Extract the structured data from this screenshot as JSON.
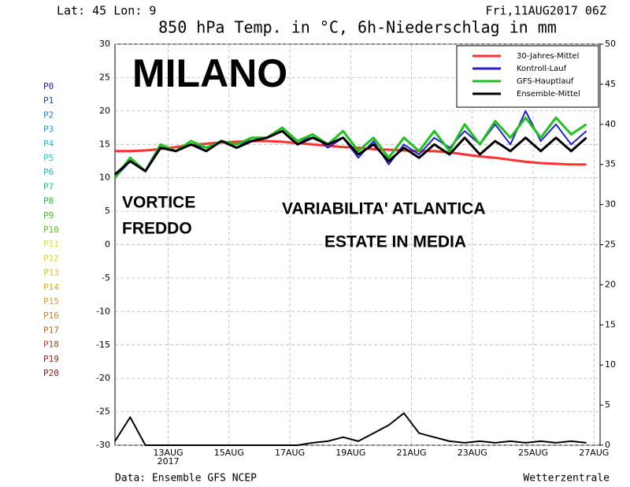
{
  "chart_data": {
    "type": "line",
    "header_left": "Lat: 45 Lon: 9",
    "header_right": "Fri,11AUG2017 06Z",
    "title": "850 hPa Temp. in °C, 6h-Niederschlag in mm",
    "footer_left": "Data: Ensemble GFS NCEP",
    "footer_right": "Wetterzentrale",
    "year_label": "2017",
    "annotations": [
      "MILANO",
      "VORTICE",
      "FREDDO",
      "VARIABILITA' ATLANTICA",
      "ESTATE IN MEDIA"
    ],
    "members": [
      {
        "name": "P0",
        "color": "#2020c0"
      },
      {
        "name": "P1",
        "color": "#2040d0"
      },
      {
        "name": "P2",
        "color": "#2080e0"
      },
      {
        "name": "P3",
        "color": "#20a0d0"
      },
      {
        "name": "P4",
        "color": "#20c0d0"
      },
      {
        "name": "P5",
        "color": "#20d0c0"
      },
      {
        "name": "P6",
        "color": "#20c0a0"
      },
      {
        "name": "P7",
        "color": "#20c080"
      },
      {
        "name": "P8",
        "color": "#20c040"
      },
      {
        "name": "P9",
        "color": "#40c020"
      },
      {
        "name": "P10",
        "color": "#60c020"
      },
      {
        "name": "P11",
        "color": "#e0e020"
      },
      {
        "name": "P12",
        "color": "#e0d020"
      },
      {
        "name": "P13",
        "color": "#e0c020"
      },
      {
        "name": "P14",
        "color": "#e0b020"
      },
      {
        "name": "P15",
        "color": "#e0a020"
      },
      {
        "name": "P16",
        "color": "#d08020"
      },
      {
        "name": "P17",
        "color": "#c06020"
      },
      {
        "name": "P18",
        "color": "#b04020"
      },
      {
        "name": "P19",
        "color": "#a02020"
      },
      {
        "name": "P20",
        "color": "#901818"
      }
    ],
    "x": [
      11.25,
      11.75,
      12.25,
      12.75,
      13.25,
      13.75,
      14.25,
      14.75,
      15.25,
      15.75,
      16.25,
      16.75,
      17.25,
      17.75,
      18.25,
      18.75,
      19.25,
      19.75,
      20.25,
      20.75,
      21.25,
      21.75,
      22.25,
      22.75,
      23.25,
      23.75,
      24.25,
      24.75,
      25.25,
      25.75,
      26.25,
      26.75
    ],
    "series": [
      {
        "name": "30-Jahres-Mittel",
        "color": "#ff3030",
        "width": 3,
        "values": [
          14,
          14,
          14.1,
          14.3,
          14.6,
          14.9,
          15.1,
          15.3,
          15.4,
          15.5,
          15.5,
          15.4,
          15.2,
          15,
          14.8,
          14.6,
          14.5,
          14.3,
          14.2,
          14.1,
          14,
          14,
          13.8,
          13.5,
          13.2,
          13,
          12.7,
          12.4,
          12.2,
          12.1,
          12,
          12
        ]
      },
      {
        "name": "Kontroll-Lauf",
        "color": "#2020d0",
        "width": 2,
        "values": [
          10,
          12.5,
          11,
          14.5,
          14,
          15,
          14.5,
          15.5,
          14.5,
          16,
          16,
          17,
          15,
          16.5,
          14.5,
          16,
          13,
          15.5,
          12,
          15,
          13.5,
          16,
          14.5,
          17,
          15,
          18,
          15,
          20,
          15.5,
          18,
          15,
          17
        ]
      },
      {
        "name": "GFS-Hauptlauf",
        "color": "#20c020",
        "width": 3,
        "values": [
          10,
          13,
          11,
          15,
          14,
          15.5,
          14.5,
          15.5,
          15,
          16,
          16,
          17.5,
          15.5,
          16.5,
          15,
          17,
          14,
          16,
          13,
          16,
          14,
          17,
          14,
          18,
          15,
          18.5,
          16,
          19,
          16,
          19,
          16.5,
          18
        ]
      },
      {
        "name": "Ensemble-Mittel",
        "color": "#000000",
        "width": 3,
        "values": [
          10.5,
          12.5,
          11,
          14.5,
          14,
          15,
          14,
          15.5,
          14.5,
          15.5,
          16,
          17,
          15,
          16,
          15,
          16,
          13.5,
          15,
          12.5,
          14.5,
          13,
          15,
          13.5,
          16,
          13.5,
          15.5,
          14,
          16,
          14,
          16,
          14,
          16
        ]
      },
      {
        "axis": "y2",
        "color": "#000000",
        "width": 2,
        "values": [
          0.5,
          3.5,
          0,
          0,
          0,
          0,
          0,
          0,
          0,
          0,
          0,
          0,
          0,
          0.3,
          0.5,
          1,
          0.5,
          1.5,
          2.5,
          4,
          1.5,
          1,
          0.5,
          0.3,
          0.5,
          0.3,
          0.5,
          0.3,
          0.5,
          0.3,
          0.5,
          0.3
        ]
      }
    ],
    "xlim": [
      11.25,
      27.2
    ],
    "xticks": [
      {
        "value": 13,
        "label": "13AUG"
      },
      {
        "value": 15,
        "label": "15AUG"
      },
      {
        "value": 17,
        "label": "17AUG"
      },
      {
        "value": 19,
        "label": "19AUG"
      },
      {
        "value": 21,
        "label": "21AUG"
      },
      {
        "value": 23,
        "label": "23AUG"
      },
      {
        "value": 25,
        "label": "25AUG"
      },
      {
        "value": 27,
        "label": "27AUG"
      }
    ],
    "ylim": [
      -30,
      30
    ],
    "yticks": [
      -30,
      -25,
      -20,
      -15,
      -10,
      -5,
      0,
      5,
      10,
      15,
      20,
      25,
      30
    ],
    "y2lim": [
      0,
      50
    ],
    "y2ticks": [
      0,
      5,
      10,
      15,
      20,
      25,
      30,
      35,
      40,
      45,
      50
    ],
    "grid": true,
    "legend": "upper right"
  }
}
